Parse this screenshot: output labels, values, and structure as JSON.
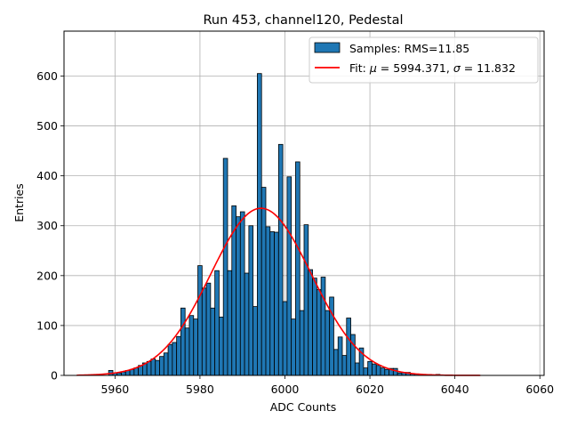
{
  "chart_data": {
    "type": "bar",
    "title": "Run 453, channel120, Pedestal",
    "xlabel": "ADC Counts",
    "ylabel": "Entries",
    "xlim": [
      5948,
      6061
    ],
    "ylim": [
      0,
      690
    ],
    "xticks": [
      5960,
      5980,
      6000,
      6020,
      6040,
      6060
    ],
    "yticks": [
      0,
      100,
      200,
      300,
      400,
      500,
      600
    ],
    "grid": true,
    "legend_position": "top-right",
    "bin_width": 1,
    "histogram": {
      "name": "Samples: RMS=11.85",
      "color": "#1f77b4",
      "bins": [
        [
          5959,
          10
        ],
        [
          5960,
          5
        ],
        [
          5961,
          5
        ],
        [
          5962,
          7
        ],
        [
          5963,
          10
        ],
        [
          5964,
          12
        ],
        [
          5965,
          15
        ],
        [
          5966,
          20
        ],
        [
          5967,
          25
        ],
        [
          5968,
          28
        ],
        [
          5969,
          33
        ],
        [
          5970,
          30
        ],
        [
          5971,
          38
        ],
        [
          5972,
          45
        ],
        [
          5973,
          62
        ],
        [
          5974,
          66
        ],
        [
          5975,
          78
        ],
        [
          5976,
          135
        ],
        [
          5977,
          95
        ],
        [
          5978,
          120
        ],
        [
          5979,
          113
        ],
        [
          5980,
          220
        ],
        [
          5981,
          175
        ],
        [
          5982,
          185
        ],
        [
          5983,
          135
        ],
        [
          5984,
          210
        ],
        [
          5985,
          117
        ],
        [
          5986,
          435
        ],
        [
          5987,
          210
        ],
        [
          5988,
          340
        ],
        [
          5989,
          318
        ],
        [
          5990,
          328
        ],
        [
          5991,
          205
        ],
        [
          5992,
          300
        ],
        [
          5993,
          138
        ],
        [
          5994,
          605
        ],
        [
          5995,
          377
        ],
        [
          5996,
          298
        ],
        [
          5997,
          288
        ],
        [
          5998,
          287
        ],
        [
          5999,
          463
        ],
        [
          6000,
          148
        ],
        [
          6001,
          398
        ],
        [
          6002,
          113
        ],
        [
          6003,
          428
        ],
        [
          6004,
          130
        ],
        [
          6005,
          302
        ],
        [
          6006,
          212
        ],
        [
          6007,
          195
        ],
        [
          6008,
          172
        ],
        [
          6009,
          197
        ],
        [
          6010,
          130
        ],
        [
          6011,
          157
        ],
        [
          6012,
          52
        ],
        [
          6013,
          77
        ],
        [
          6014,
          40
        ],
        [
          6015,
          115
        ],
        [
          6016,
          82
        ],
        [
          6017,
          25
        ],
        [
          6018,
          55
        ],
        [
          6019,
          15
        ],
        [
          6020,
          28
        ],
        [
          6021,
          23
        ],
        [
          6022,
          20
        ],
        [
          6023,
          15
        ],
        [
          6024,
          12
        ],
        [
          6025,
          14
        ],
        [
          6026,
          14
        ],
        [
          6027,
          5
        ],
        [
          6028,
          6
        ],
        [
          6029,
          6
        ],
        [
          6030,
          3
        ],
        [
          6031,
          3
        ],
        [
          6032,
          2
        ],
        [
          6034,
          2
        ],
        [
          6036,
          2
        ]
      ]
    },
    "fit": {
      "name": "Fit: μ = 5994.371, σ = 11.832",
      "color": "#ff0000",
      "mu": 5994.371,
      "sigma": 11.832,
      "amplitude": 335,
      "x_range": [
        5951,
        6046
      ]
    },
    "legend": {
      "samples_prefix": "Samples: RMS=11.85",
      "fit_prefix": "Fit: ",
      "mu_symbol": "μ",
      "mu_text": " = 5994.371, ",
      "sigma_symbol": "σ",
      "sigma_text": " = 11.832"
    }
  }
}
